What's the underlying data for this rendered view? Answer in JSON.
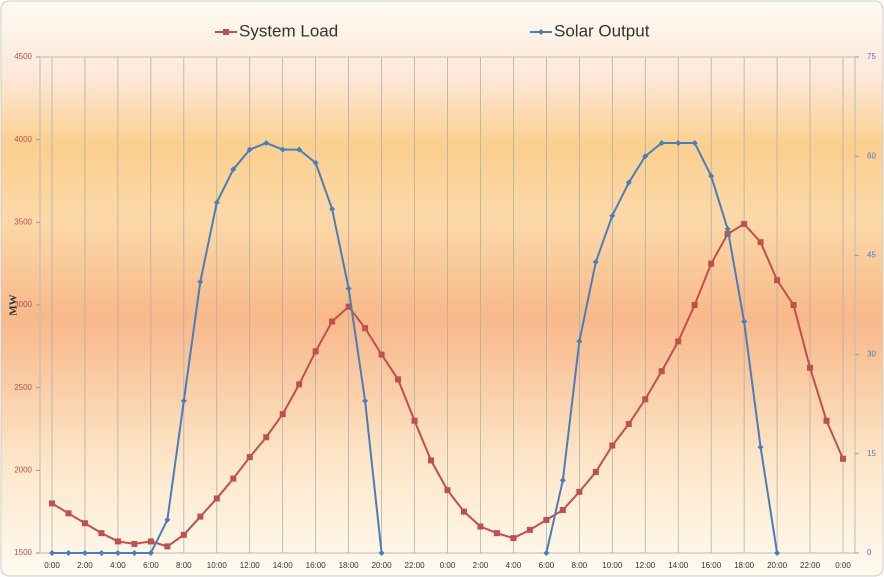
{
  "chart_data": {
    "type": "line",
    "categories": [
      "0:00",
      null,
      "2:00",
      null,
      "4:00",
      null,
      "6:00",
      null,
      "8:00",
      null,
      "10:00",
      null,
      "12:00",
      null,
      "14:00",
      null,
      "16:00",
      null,
      "18:00",
      null,
      "20:00",
      null,
      "22:00",
      null,
      "0:00",
      null,
      "2:00",
      null,
      "4:00",
      null,
      "6:00",
      null,
      "8:00",
      null,
      "10:00",
      null,
      "12:00",
      null,
      "14:00",
      null,
      "16:00",
      null,
      "18:00",
      null,
      "20:00",
      null,
      "22:00",
      null,
      "0:00"
    ],
    "series": [
      {
        "name": "System Load",
        "color": "#c0504d",
        "axis": "y",
        "values": [
          1800,
          1740,
          1680,
          1620,
          1570,
          1555,
          1570,
          1540,
          1610,
          1720,
          1830,
          1950,
          2080,
          2200,
          2340,
          2520,
          2720,
          2900,
          2990,
          2860,
          2700,
          2550,
          2300,
          2060,
          1880,
          1750,
          1660,
          1620,
          1590,
          1640,
          1700,
          1760,
          1870,
          1990,
          2150,
          2280,
          2430,
          2600,
          2780,
          3000,
          3250,
          3430,
          3490,
          3380,
          3150,
          3000,
          2620,
          2300,
          2070
        ]
      },
      {
        "name": "Solar Output",
        "color": "#4a7ebb",
        "axis": "y2",
        "values": [
          0,
          0,
          0,
          0,
          0,
          0,
          0,
          5,
          23,
          41,
          53,
          58,
          61,
          62,
          61,
          61,
          59,
          52,
          40,
          23,
          0,
          null,
          null,
          null,
          null,
          null,
          null,
          null,
          null,
          null,
          0,
          11,
          32,
          44,
          51,
          56,
          60,
          62,
          62,
          62,
          57,
          49,
          35,
          16,
          0,
          null,
          null,
          null,
          null
        ]
      }
    ],
    "ylabel": "MW",
    "ylim": [
      1500,
      4500
    ],
    "yticks": [
      1500,
      2000,
      2500,
      3000,
      3500,
      4000,
      4500
    ],
    "y2lim": [
      0,
      75
    ],
    "y2ticks": [
      0,
      15,
      30,
      45,
      60,
      75
    ],
    "grid": true
  }
}
